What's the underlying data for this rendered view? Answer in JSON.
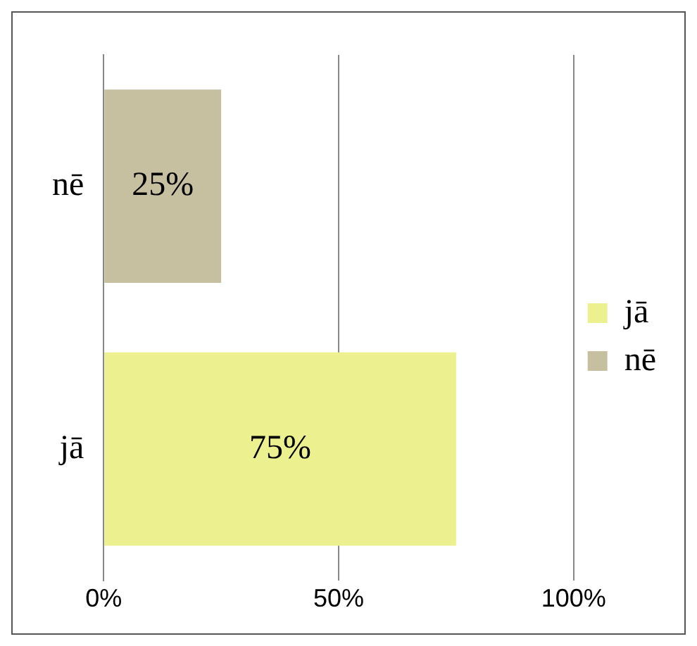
{
  "chart_data": {
    "type": "bar",
    "orientation": "horizontal",
    "categories": [
      "nē",
      "jā"
    ],
    "series": [
      {
        "name": "jā",
        "color": "#ecf08e",
        "values": [
          null,
          75
        ],
        "value_labels": [
          null,
          "75%"
        ]
      },
      {
        "name": "nē",
        "color": "#c6bfa0",
        "values": [
          25,
          null
        ],
        "value_labels": [
          "25%",
          null
        ]
      }
    ],
    "xlim": [
      0,
      100
    ],
    "xticks": [
      {
        "value": 0,
        "label": "0%"
      },
      {
        "value": 50,
        "label": "50%"
      },
      {
        "value": 100,
        "label": "100%"
      }
    ],
    "grid": "x",
    "legend": "right"
  }
}
